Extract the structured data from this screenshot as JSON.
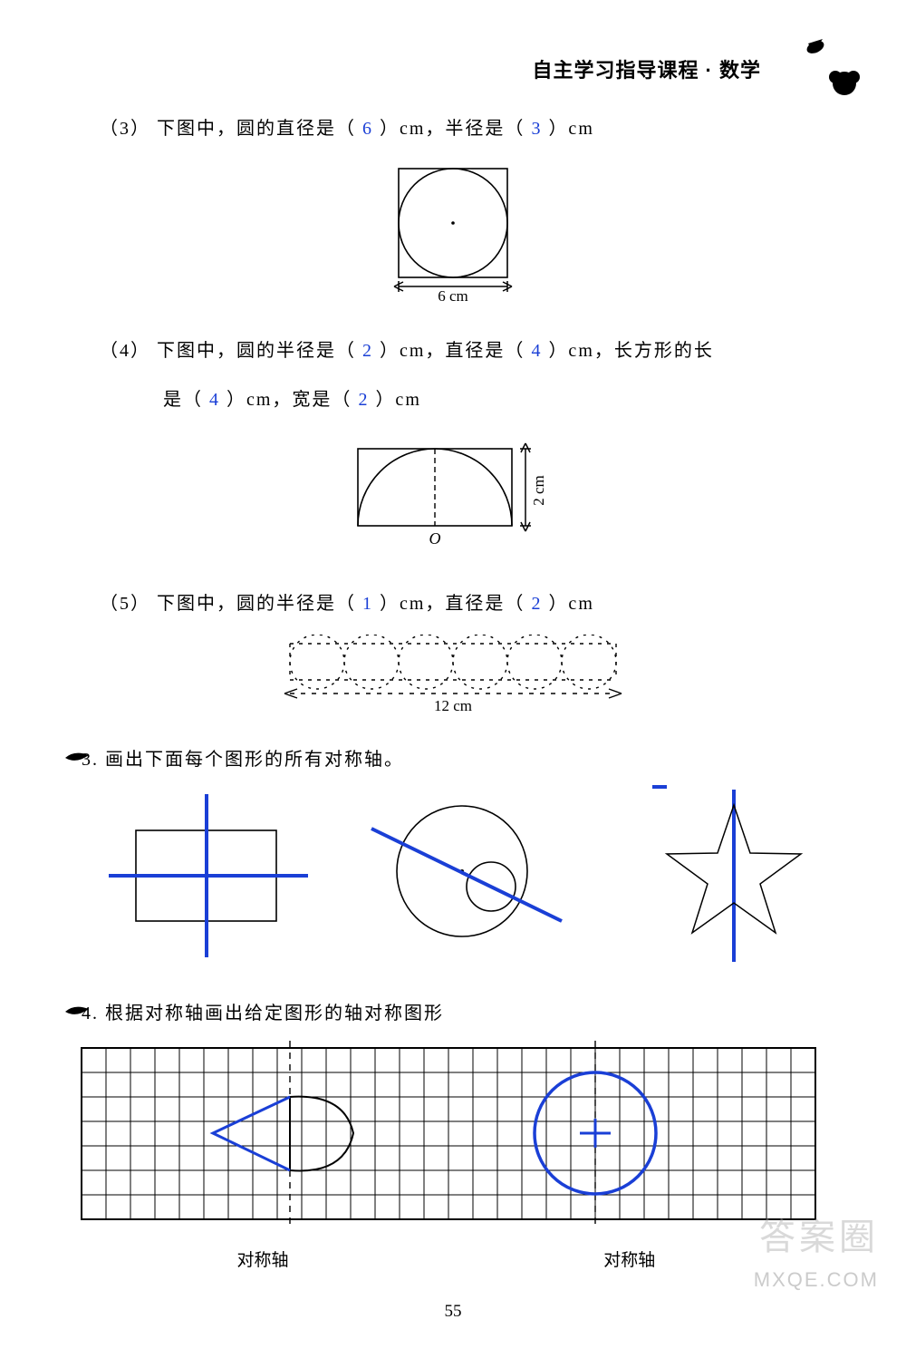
{
  "header": {
    "title": "自主学习指导课程 · 数学"
  },
  "colors": {
    "answer": "#1a3fd6",
    "ink": "#000000",
    "grid": "#222222",
    "axis_dash": "#333333",
    "background": "#ffffff"
  },
  "fonts": {
    "body_family": "SimSun",
    "body_size_pt": 15,
    "answer_family": "Comic Sans MS"
  },
  "problems": {
    "p3": {
      "label": "（3）",
      "text_before": "下图中，圆的直径是（",
      "ans_d": "6",
      "text_mid": "）cm，半径是（",
      "ans_r": "3",
      "text_after": "）cm",
      "figure": {
        "type": "diagram",
        "square_side_label": "6 cm",
        "circle_inscribed": true
      }
    },
    "p4": {
      "label": "（4）",
      "line1_a": "下图中，圆的半径是（",
      "ans_r": "2",
      "line1_b": "）cm，直径是（",
      "ans_d": "4",
      "line1_c": "）cm，长方形的长",
      "line2_a": "是（",
      "ans_len": "4",
      "line2_b": "）cm，宽是（",
      "ans_w": "2",
      "line2_c": "）cm",
      "figure": {
        "type": "diagram",
        "rect_w": 4,
        "rect_h": 2,
        "height_label": "2 cm",
        "origin_label": "O"
      }
    },
    "p5": {
      "label": "（5）",
      "text_a": "下图中，圆的半径是（",
      "ans_r": "1",
      "text_b": "）cm，直径是（",
      "ans_d": "2",
      "text_c": "）cm",
      "figure": {
        "type": "diagram",
        "total_label": "12 cm",
        "circle_count": 6
      }
    }
  },
  "q3": {
    "label": "3.",
    "text": "画出下面每个图形的所有对称轴。",
    "shapes": {
      "type": "infographic",
      "rectangle": {
        "w": 150,
        "h": 100,
        "symmetry_axes": [
          {
            "kind": "vertical"
          },
          {
            "kind": "horizontal"
          }
        ],
        "stroke": "#000000",
        "axis_color": "#1a3fd6",
        "axis_width": 3
      },
      "two_circles": {
        "large_r": 70,
        "small_r": 26,
        "axis_angle_deg": -25,
        "stroke": "#000000",
        "axis_color": "#1a3fd6",
        "axis_width": 3
      },
      "star": {
        "points": 5,
        "outer_r": 75,
        "inner_r": 30,
        "axis": "vertical",
        "stroke": "#000000",
        "axis_color": "#1a3fd6",
        "axis_width": 3
      }
    }
  },
  "q4": {
    "label": "4.",
    "text": "根据对称轴画出给定图形的轴对称图形",
    "grid": {
      "type": "diagram",
      "cols": 30,
      "rows": 7,
      "cell": 27,
      "axis1_col": 8.5,
      "axis2_col": 21,
      "stroke": "#000000",
      "answer_color": "#1a3fd6",
      "left_shape": "bow",
      "right_shape": "circle",
      "circle_r_cells": 2.5
    },
    "label_left": "对称轴",
    "label_right": "对称轴"
  },
  "page_number": "55",
  "watermarks": {
    "cn": "答案圈",
    "en": "MXQE.COM"
  }
}
